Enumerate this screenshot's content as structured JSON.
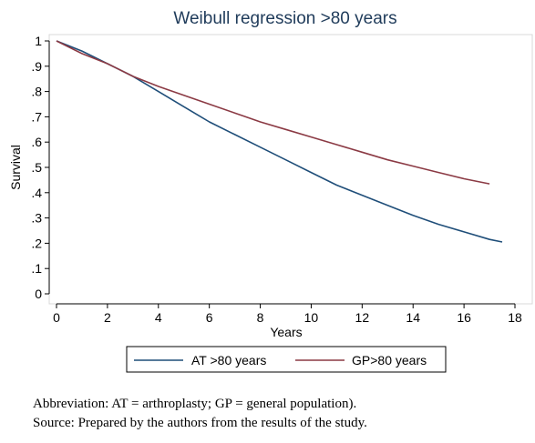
{
  "chart_data": {
    "type": "line",
    "title": "Weibull regression >80 years",
    "xlabel": "Years",
    "ylabel": "Survival",
    "xlim": [
      0,
      18
    ],
    "ylim": [
      0,
      1
    ],
    "x_ticks": [
      "0",
      "2",
      "4",
      "6",
      "8",
      "10",
      "12",
      "14",
      "16",
      "18"
    ],
    "y_ticks": [
      "0",
      ".1",
      ".2",
      ".3",
      ".4",
      ".5",
      ".6",
      ".7",
      ".8",
      ".9",
      "1"
    ],
    "legend_placement": "bottom",
    "series": [
      {
        "name": "AT >80 years",
        "color": "#1f4e79",
        "x": [
          0,
          1,
          2,
          3,
          4,
          5,
          6,
          7,
          8,
          9,
          10,
          11,
          12,
          13,
          14,
          15,
          16,
          17,
          17.5
        ],
        "y": [
          1.0,
          0.96,
          0.91,
          0.86,
          0.8,
          0.74,
          0.68,
          0.63,
          0.58,
          0.53,
          0.48,
          0.43,
          0.39,
          0.35,
          0.31,
          0.275,
          0.245,
          0.215,
          0.205
        ]
      },
      {
        "name": "GP>80 years",
        "color": "#8b3a44",
        "x": [
          0,
          1,
          2,
          3,
          4,
          5,
          6,
          7,
          8,
          9,
          10,
          11,
          12,
          13,
          14,
          15,
          16,
          17
        ],
        "y": [
          1.0,
          0.95,
          0.91,
          0.86,
          0.82,
          0.785,
          0.75,
          0.715,
          0.68,
          0.65,
          0.62,
          0.59,
          0.56,
          0.53,
          0.505,
          0.48,
          0.455,
          0.435
        ]
      }
    ]
  },
  "caption": {
    "line1": "Abbreviation: AT = arthroplasty; GP = general population).",
    "line2": "Source: Prepared by the authors from the results of the study."
  }
}
